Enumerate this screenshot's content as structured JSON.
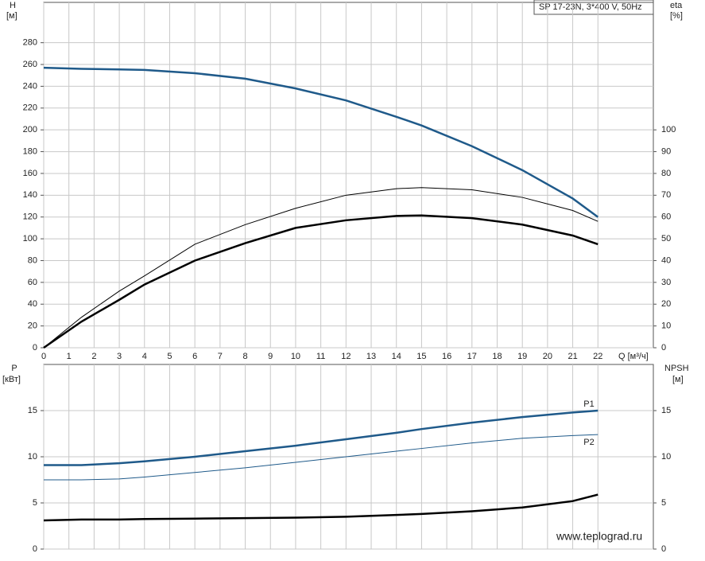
{
  "chart_data": [
    {
      "type": "line",
      "title": "SP 17-23N, 3*400 V, 50Hz",
      "y_label": "H",
      "y_unit": "[м]",
      "y2_label": "eta",
      "y2_unit": "[%]",
      "x_label": "Q [м³/ч]",
      "x": [
        0,
        1.5,
        3,
        4,
        6,
        8,
        10,
        12,
        14,
        15,
        17,
        19,
        21,
        22
      ],
      "xlim": [
        0,
        24.2
      ],
      "xticks": [
        0,
        1,
        2,
        3,
        4,
        5,
        6,
        7,
        8,
        9,
        10,
        11,
        12,
        13,
        14,
        15,
        16,
        17,
        18,
        19,
        20,
        21,
        22
      ],
      "ylim": [
        0,
        317
      ],
      "yticks": [
        0,
        20,
        40,
        60,
        80,
        100,
        120,
        140,
        160,
        180,
        200,
        220,
        240,
        260,
        280
      ],
      "y2lim": [
        0,
        158.5
      ],
      "y2ticks": [
        0,
        10,
        20,
        30,
        40,
        50,
        60,
        70,
        80,
        90,
        100
      ],
      "grid": true,
      "series": [
        {
          "color": "#1f5a8a",
          "line_width": 2.5,
          "values": [
            257,
            256,
            255.5,
            255,
            252,
            247,
            238,
            227,
            212,
            204,
            185,
            163,
            137,
            120
          ]
        },
        {
          "color": "#000000",
          "line_width": 1,
          "axis": "y2",
          "values": [
            0,
            14,
            26,
            33,
            47.5,
            56.5,
            64,
            70,
            73,
            73.5,
            72.5,
            69,
            63,
            58
          ]
        },
        {
          "color": "#000000",
          "line_width": 2.5,
          "axis": "y2",
          "values": [
            0,
            12,
            22,
            29,
            40,
            48,
            55,
            58.5,
            60.5,
            60.7,
            59.5,
            56.5,
            51.5,
            47.5
          ]
        }
      ]
    },
    {
      "type": "line",
      "y_label": "P",
      "y_unit": "[кВт]",
      "y2_label": "NPSH",
      "y2_unit": "[м]",
      "x": [
        0,
        1.5,
        3,
        4,
        6,
        8,
        10,
        12,
        14,
        15,
        17,
        19,
        21,
        22
      ],
      "xlim": [
        0,
        24.2
      ],
      "ylim": [
        0,
        20
      ],
      "yticks": [
        0,
        5,
        10,
        15
      ],
      "y2lim": [
        0,
        20
      ],
      "y2ticks": [
        0,
        5,
        10,
        15
      ],
      "grid": true,
      "series": [
        {
          "name": "P1",
          "color": "#1f5a8a",
          "line_width": 2.5,
          "values": [
            9.1,
            9.1,
            9.3,
            9.5,
            10.0,
            10.6,
            11.2,
            11.9,
            12.6,
            13.0,
            13.7,
            14.3,
            14.8,
            15.0
          ]
        },
        {
          "name": "P2",
          "color": "#1f5a8a",
          "line_width": 1,
          "values": [
            7.5,
            7.5,
            7.6,
            7.8,
            8.3,
            8.8,
            9.4,
            10.0,
            10.6,
            10.9,
            11.5,
            12.0,
            12.3,
            12.4
          ]
        },
        {
          "color": "#000000",
          "line_width": 2.5,
          "axis": "y2",
          "values": [
            3.1,
            3.2,
            3.2,
            3.25,
            3.3,
            3.35,
            3.4,
            3.5,
            3.7,
            3.8,
            4.1,
            4.5,
            5.2,
            5.9
          ]
        }
      ]
    }
  ],
  "watermark": "www.teplograd.ru"
}
